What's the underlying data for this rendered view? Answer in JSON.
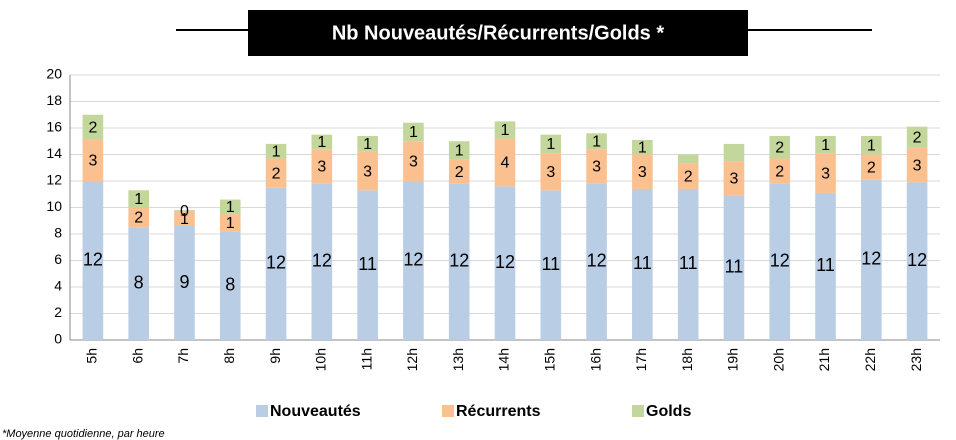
{
  "chart_data": {
    "type": "stacked_bar",
    "title": "Nb Nouveautés/Récurrents/Golds *",
    "footnote": "*Moyenne quotidienne, par heure",
    "categories": [
      "5h",
      "6h",
      "7h",
      "8h",
      "9h",
      "10h",
      "11h",
      "12h",
      "13h",
      "14h",
      "15h",
      "16h",
      "17h",
      "18h",
      "19h",
      "20h",
      "21h",
      "22h",
      "23h"
    ],
    "series": [
      {
        "name": "Nouveautés",
        "color": "#b9cde5",
        "values": [
          12,
          8.5,
          8.6,
          8.2,
          11.5,
          11.8,
          11.3,
          12,
          11.8,
          11.6,
          11.3,
          11.8,
          11.4,
          11.4,
          10.9,
          11.8,
          11.1,
          12.1,
          11.9
        ],
        "value_labels": [
          "12",
          "8",
          "9",
          "8",
          "12",
          "12",
          "11",
          "12",
          "12",
          "12",
          "11",
          "12",
          "11",
          "11",
          "11",
          "12",
          "11",
          "12",
          "12"
        ]
      },
      {
        "name": "Récurrents",
        "color": "#fac090",
        "values": [
          3.1,
          1.5,
          1.1,
          1.3,
          2.2,
          2.6,
          2.9,
          3,
          1.8,
          3.6,
          2.8,
          2.6,
          2.6,
          1.9,
          2.6,
          1.9,
          3,
          1.9,
          2.6
        ],
        "value_labels": [
          "3",
          "2",
          "1",
          "1",
          "2",
          "3",
          "3",
          "3",
          "2",
          "4",
          "3",
          "3",
          "3",
          "2",
          "3",
          "2",
          "3",
          "2",
          "3"
        ]
      },
      {
        "name": "Golds",
        "color": "#c3d69b",
        "values": [
          1.9,
          1.3,
          0.1,
          1.1,
          1.1,
          1.1,
          1.2,
          1.4,
          1.4,
          1.3,
          1.4,
          1.2,
          1.1,
          0.7,
          1.3,
          1.7,
          1.3,
          1.4,
          1.6
        ],
        "value_labels": [
          "2",
          "1",
          "0",
          "1",
          "1",
          "1",
          "1",
          "1",
          "1",
          "1",
          "1",
          "1",
          "1",
          null,
          null,
          "2",
          "1",
          "1",
          "2"
        ]
      }
    ],
    "ylim": [
      0,
      20
    ],
    "yticks": [
      0,
      2,
      4,
      6,
      8,
      10,
      12,
      14,
      16,
      18,
      20
    ],
    "grid": true,
    "legend": "bottom"
  }
}
